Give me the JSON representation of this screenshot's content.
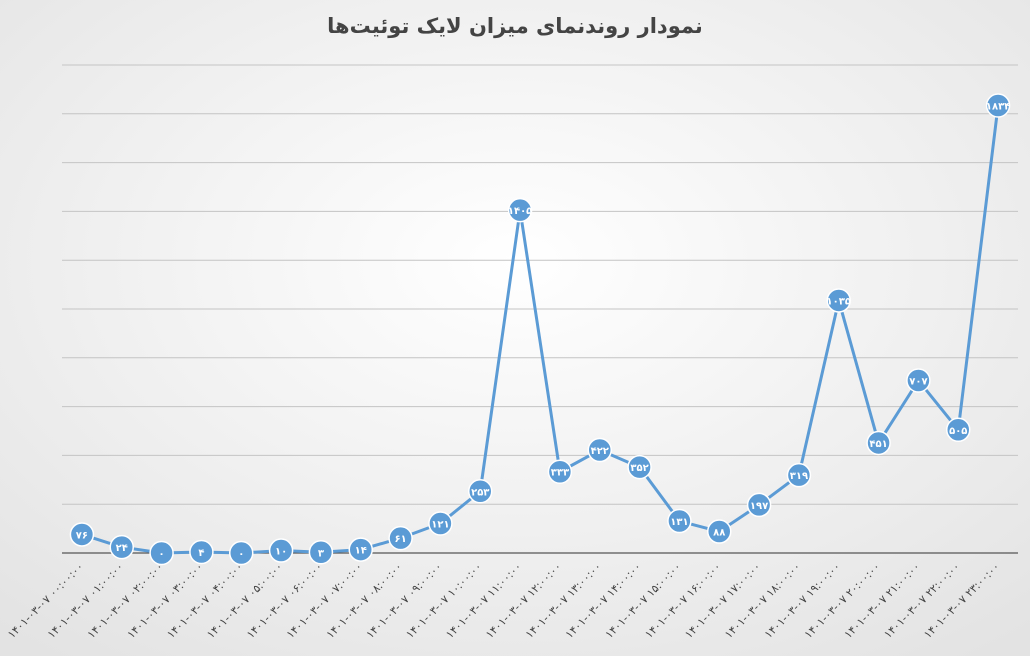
{
  "chart_data": {
    "type": "line",
    "title": "نمودار روندنمای میزان لایک توئیت‌ها",
    "categories": [
      "۱۴۰۱-۰۳-۰۷ ۰۰:۰۰:۰۰",
      "۱۴۰۱-۰۳-۰۷ ۰۱:۰۰:۰۰",
      "۱۴۰۱-۰۳-۰۷ ۰۲:۰۰:۰۰",
      "۱۴۰۱-۰۳-۰۷ ۰۳:۰۰:۰۰",
      "۱۴۰۱-۰۳-۰۷ ۰۴:۰۰:۰۰",
      "۱۴۰۱-۰۳-۰۷ ۰۵:۰۰:۰۰",
      "۱۴۰۱-۰۳-۰۷ ۰۶:۰۰:۰۰",
      "۱۴۰۱-۰۳-۰۷ ۰۷:۰۰:۰۰",
      "۱۴۰۱-۰۳-۰۷ ۰۸:۰۰:۰۰",
      "۱۴۰۱-۰۳-۰۷ ۰۹:۰۰:۰۰",
      "۱۴۰۱-۰۳-۰۷ ۱۰:۰۰:۰۰",
      "۱۴۰۱-۰۳-۰۷ ۱۱:۰۰:۰۰",
      "۱۴۰۱-۰۳-۰۷ ۱۲:۰۰:۰۰",
      "۱۴۰۱-۰۳-۰۷ ۱۳:۰۰:۰۰",
      "۱۴۰۱-۰۳-۰۷ ۱۴:۰۰:۰۰",
      "۱۴۰۱-۰۳-۰۷ ۱۵:۰۰:۰۰",
      "۱۴۰۱-۰۳-۰۷ ۱۶:۰۰:۰۰",
      "۱۴۰۱-۰۳-۰۷ ۱۷:۰۰:۰۰",
      "۱۴۰۱-۰۳-۰۷ ۱۸:۰۰:۰۰",
      "۱۴۰۱-۰۳-۰۷ ۱۹:۰۰:۰۰",
      "۱۴۰۱-۰۳-۰۷ ۲۰:۰۰:۰۰",
      "۱۴۰۱-۰۳-۰۷ ۲۱:۰۰:۰۰",
      "۱۴۰۱-۰۳-۰۷ ۲۲:۰۰:۰۰",
      "۱۴۰۱-۰۳-۰۷ ۲۳:۰۰:۰۰"
    ],
    "values": [
      76,
      24,
      0,
      4,
      0,
      10,
      3,
      14,
      61,
      121,
      253,
      1405,
      333,
      422,
      352,
      131,
      88,
      197,
      319,
      1035,
      451,
      707,
      505,
      1834
    ],
    "value_labels": [
      "۷۶",
      "۲۴",
      "۰",
      "۴",
      "۰",
      "۱۰",
      "۳",
      "۱۴",
      "۶۱",
      "۱۲۱",
      "۲۵۳",
      "۱۴۰۵",
      "۳۳۳",
      "۴۲۲",
      "۳۵۲",
      "۱۳۱",
      "۸۸",
      "۱۹۷",
      "۳۱۹",
      "۱۰۳۵",
      "۴۵۱",
      "۷۰۷",
      "۵۰۵",
      "۱۸۳۴"
    ],
    "color": "#5b9bd5",
    "ylim": [
      0,
      2000
    ],
    "yticks": [
      0,
      200,
      400,
      600,
      800,
      1000,
      1200,
      1400,
      1600,
      1800,
      2000
    ],
    "grid": true
  }
}
